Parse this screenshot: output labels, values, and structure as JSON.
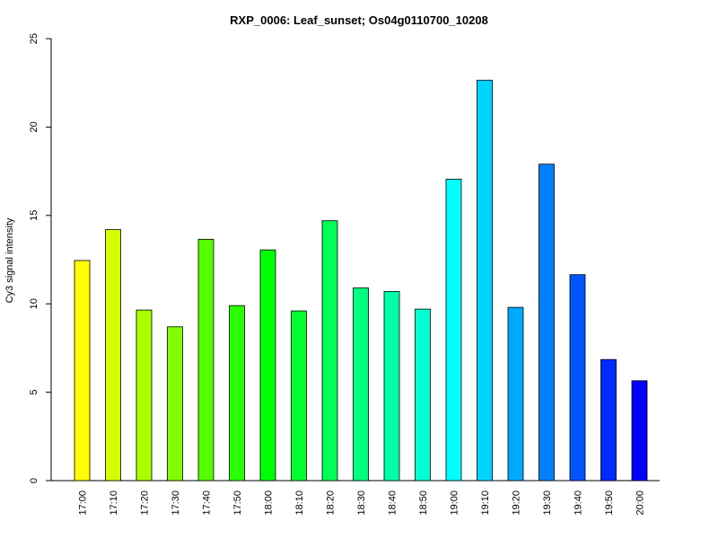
{
  "chart_data": {
    "type": "bar",
    "title": "RXP_0006: Leaf_sunset; Os04g0110700_10208",
    "xlabel": "",
    "ylabel": "Cy3 signal intensity",
    "ylim": [
      0,
      25
    ],
    "yticks": [
      0,
      5,
      10,
      15,
      20,
      25
    ],
    "grid": false,
    "categories": [
      "17:00",
      "17:10",
      "17:20",
      "17:30",
      "17:40",
      "17:50",
      "18:00",
      "18:10",
      "18:20",
      "18:30",
      "18:40",
      "18:50",
      "19:00",
      "19:10",
      "19:20",
      "19:30",
      "19:40",
      "19:50",
      "20:00"
    ],
    "values": [
      12.45,
      14.2,
      9.65,
      8.7,
      13.65,
      9.9,
      13.05,
      9.6,
      14.7,
      10.9,
      10.7,
      9.7,
      17.05,
      22.65,
      9.8,
      17.9,
      11.65,
      6.85,
      5.65
    ],
    "colors": [
      "#FFFF00",
      "#D4FF00",
      "#AAFF00",
      "#80FF00",
      "#55FF00",
      "#2BFF00",
      "#00FF00",
      "#00FF2B",
      "#00FF55",
      "#00FF80",
      "#00FFAA",
      "#00FFD4",
      "#00FFFF",
      "#00D4FF",
      "#00AAFF",
      "#0080FF",
      "#0055FF",
      "#002BFF",
      "#0000FF"
    ]
  }
}
